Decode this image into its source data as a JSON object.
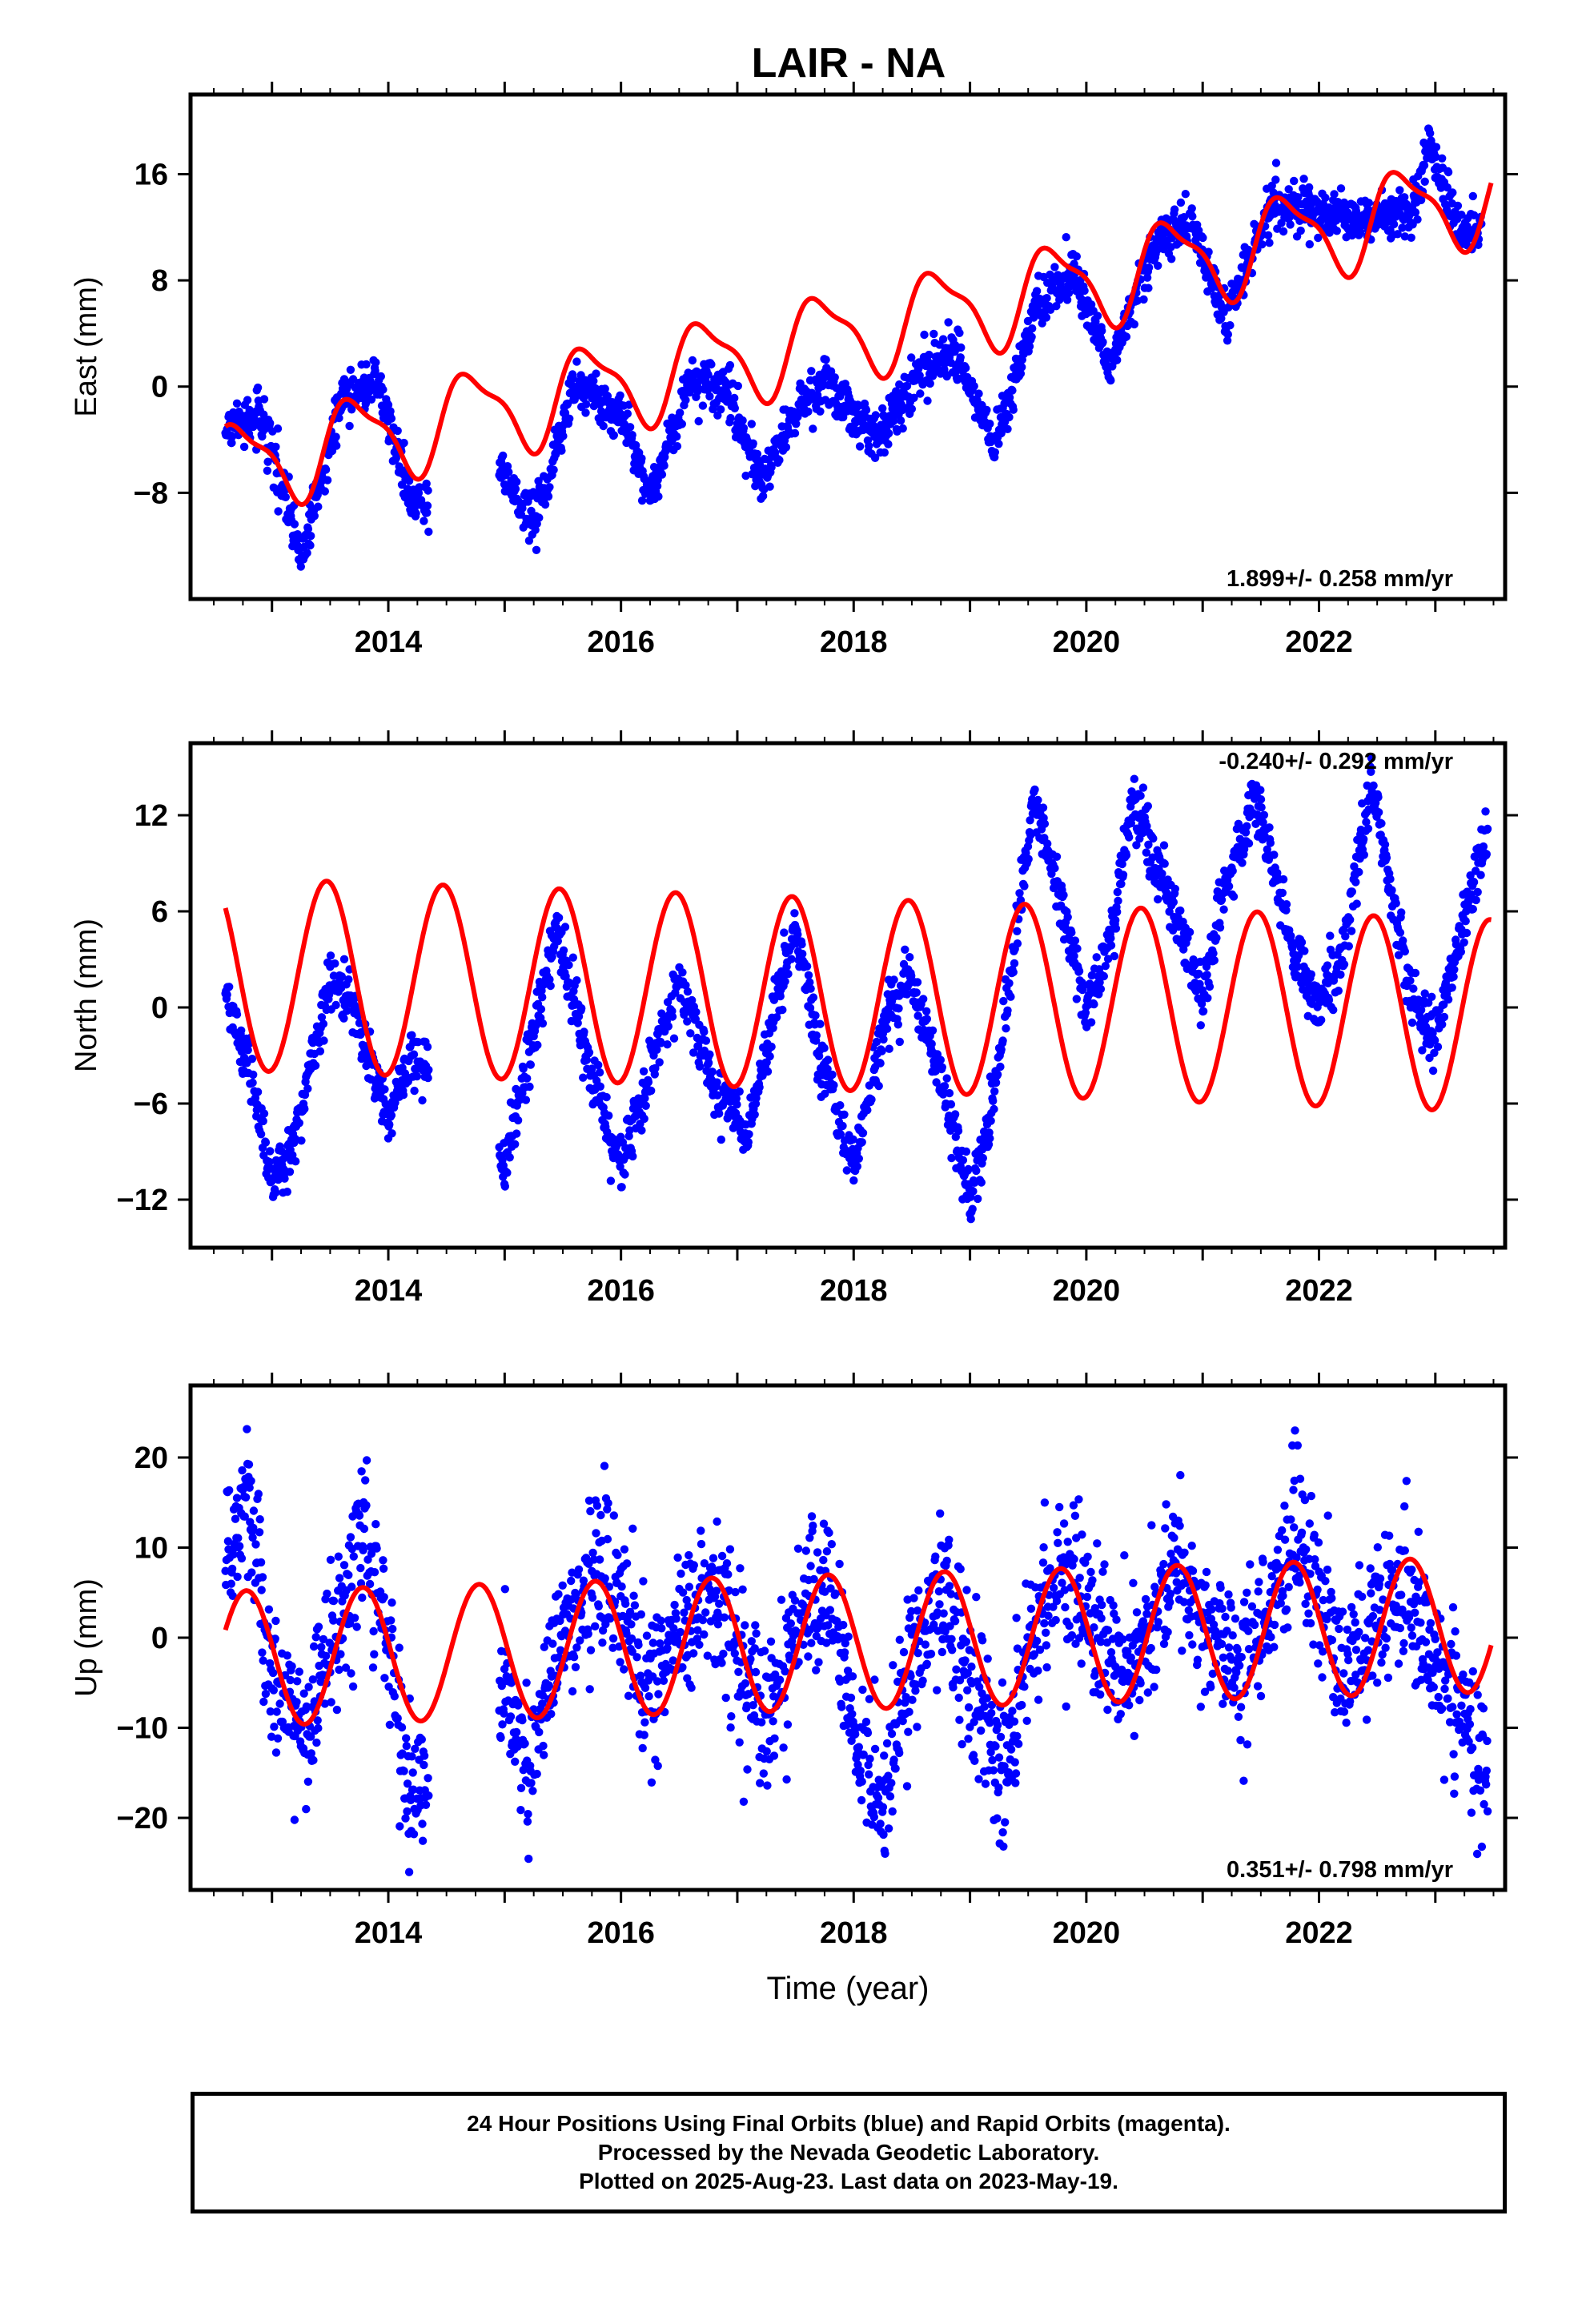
{
  "title": "LAIR - NA",
  "colors": {
    "data": "#0000ff",
    "model": "#ff0000",
    "axis": "#000000",
    "background": "#ffffff"
  },
  "chart_data": [
    {
      "type": "scatter",
      "component": "east",
      "ylabel": "East (mm)",
      "xlabel": "",
      "xlim": [
        2012.3,
        2023.6
      ],
      "ylim": [
        -16,
        22
      ],
      "xticks": [
        2014,
        2016,
        2018,
        2020,
        2022
      ],
      "yticks": [
        -8,
        0,
        8,
        16
      ],
      "rate_label": "1.899+/- 0.258 mm/yr",
      "rate_label_position": "bottom-right",
      "model": {
        "offset": -5.4,
        "rate": 1.899,
        "annual_amp": 3.2,
        "annual_peak": 0.72,
        "semiannual_amp": 1.0,
        "semiannual_peak": 0.55
      },
      "series": [
        {
          "x": 2012.6,
          "y": -3.5
        },
        {
          "x": 2012.9,
          "y": -2.0
        },
        {
          "x": 2013.1,
          "y": -7.5
        },
        {
          "x": 2013.25,
          "y": -13.0
        },
        {
          "x": 2013.6,
          "y": -1.0
        },
        {
          "x": 2013.9,
          "y": 0.5
        },
        {
          "x": 2014.2,
          "y": -9.0
        },
        {
          "x": 2015.0,
          "y": -6.0
        },
        {
          "x": 2015.25,
          "y": -10.5
        },
        {
          "x": 2015.6,
          "y": 0.0
        },
        {
          "x": 2016.0,
          "y": -2.0
        },
        {
          "x": 2016.25,
          "y": -8.5
        },
        {
          "x": 2016.6,
          "y": 0.5
        },
        {
          "x": 2016.9,
          "y": 0.0
        },
        {
          "x": 2017.2,
          "y": -7.0
        },
        {
          "x": 2017.6,
          "y": -0.5
        },
        {
          "x": 2017.8,
          "y": 0.0
        },
        {
          "x": 2018.2,
          "y": -4.0
        },
        {
          "x": 2018.6,
          "y": 1.5
        },
        {
          "x": 2018.9,
          "y": 2.5
        },
        {
          "x": 2019.2,
          "y": -4.5
        },
        {
          "x": 2019.6,
          "y": 6.5
        },
        {
          "x": 2019.9,
          "y": 8.5
        },
        {
          "x": 2020.2,
          "y": 1.5
        },
        {
          "x": 2020.6,
          "y": 11.0
        },
        {
          "x": 2020.9,
          "y": 12.5
        },
        {
          "x": 2021.2,
          "y": 5.0
        },
        {
          "x": 2021.6,
          "y": 14.0
        },
        {
          "x": 2021.9,
          "y": 13.0
        },
        {
          "x": 2022.4,
          "y": 12.5
        },
        {
          "x": 2022.8,
          "y": 13.0
        },
        {
          "x": 2022.95,
          "y": 18.5
        },
        {
          "x": 2023.2,
          "y": 12.0
        },
        {
          "x": 2023.4,
          "y": 12.0
        }
      ]
    },
    {
      "type": "scatter",
      "component": "north",
      "ylabel": "North (mm)",
      "xlabel": "",
      "xlim": [
        2012.3,
        2023.6
      ],
      "ylim": [
        -15,
        16.5
      ],
      "xticks": [
        2014,
        2016,
        2018,
        2020,
        2022
      ],
      "yticks": [
        -12,
        -6,
        0,
        6,
        12
      ],
      "rate_label": "-0.240+/- 0.292 mm/yr",
      "rate_label_position": "top-right",
      "model": {
        "offset": 2.0,
        "rate": -0.24,
        "annual_amp": 6.0,
        "annual_peak": 0.47,
        "semiannual_amp": 0.0,
        "semiannual_peak": 0.0
      },
      "series": [
        {
          "x": 2012.6,
          "y": 1.0
        },
        {
          "x": 2012.8,
          "y": -3.5
        },
        {
          "x": 2013.0,
          "y": -11.0
        },
        {
          "x": 2013.2,
          "y": -8.0
        },
        {
          "x": 2013.5,
          "y": 2.0
        },
        {
          "x": 2013.7,
          "y": 0.0
        },
        {
          "x": 2014.0,
          "y": -7.0
        },
        {
          "x": 2014.2,
          "y": -3.0
        },
        {
          "x": 2015.0,
          "y": -10.0
        },
        {
          "x": 2015.2,
          "y": -3.0
        },
        {
          "x": 2015.45,
          "y": 5.0
        },
        {
          "x": 2015.7,
          "y": -3.0
        },
        {
          "x": 2016.0,
          "y": -10.0
        },
        {
          "x": 2016.3,
          "y": -3.0
        },
        {
          "x": 2016.5,
          "y": 2.0
        },
        {
          "x": 2016.8,
          "y": -5.0
        },
        {
          "x": 2017.1,
          "y": -8.0
        },
        {
          "x": 2017.3,
          "y": -1.0
        },
        {
          "x": 2017.5,
          "y": 5.0
        },
        {
          "x": 2017.7,
          "y": -3.0
        },
        {
          "x": 2018.0,
          "y": -10.0
        },
        {
          "x": 2018.3,
          "y": 0.0
        },
        {
          "x": 2018.5,
          "y": 2.0
        },
        {
          "x": 2018.8,
          "y": -6.0
        },
        {
          "x": 2019.0,
          "y": -12.0
        },
        {
          "x": 2019.2,
          "y": -6.0
        },
        {
          "x": 2019.55,
          "y": 13.0
        },
        {
          "x": 2019.8,
          "y": 6.0
        },
        {
          "x": 2020.0,
          "y": 0.0
        },
        {
          "x": 2020.2,
          "y": 4.0
        },
        {
          "x": 2020.4,
          "y": 13.0
        },
        {
          "x": 2020.7,
          "y": 7.0
        },
        {
          "x": 2021.0,
          "y": 0.5
        },
        {
          "x": 2021.2,
          "y": 8.0
        },
        {
          "x": 2021.45,
          "y": 13.0
        },
        {
          "x": 2021.8,
          "y": 3.0
        },
        {
          "x": 2022.0,
          "y": 0.0
        },
        {
          "x": 2022.2,
          "y": 3.0
        },
        {
          "x": 2022.45,
          "y": 14.0
        },
        {
          "x": 2022.8,
          "y": 0.5
        },
        {
          "x": 2023.0,
          "y": -2.0
        },
        {
          "x": 2023.2,
          "y": 4.0
        },
        {
          "x": 2023.45,
          "y": 11.0
        }
      ]
    },
    {
      "type": "scatter",
      "component": "up",
      "ylabel": "Up (mm)",
      "xlabel": "Time (year)",
      "xlim": [
        2012.3,
        2023.6
      ],
      "ylim": [
        -28,
        28
      ],
      "xticks": [
        2014,
        2016,
        2018,
        2020,
        2022
      ],
      "yticks": [
        -20,
        -10,
        0,
        10,
        20
      ],
      "rate_label": "0.351+/- 0.798 mm/yr",
      "rate_label_position": "bottom-right",
      "model": {
        "offset": -2.2,
        "rate": 0.351,
        "annual_amp": 7.5,
        "annual_peak": 0.78,
        "semiannual_amp": 0.0,
        "semiannual_peak": 0.0
      },
      "series": [
        {
          "x": 2012.6,
          "y": 10.0
        },
        {
          "x": 2012.8,
          "y": 15.0
        },
        {
          "x": 2013.0,
          "y": -5.0
        },
        {
          "x": 2013.3,
          "y": -10.0
        },
        {
          "x": 2013.6,
          "y": 3.0
        },
        {
          "x": 2013.8,
          "y": 12.0
        },
        {
          "x": 2014.0,
          "y": -2.0
        },
        {
          "x": 2014.2,
          "y": -18.0
        },
        {
          "x": 2015.0,
          "y": -5.0
        },
        {
          "x": 2015.2,
          "y": -15.0
        },
        {
          "x": 2015.5,
          "y": 0.0
        },
        {
          "x": 2015.8,
          "y": 8.0
        },
        {
          "x": 2016.0,
          "y": 5.0
        },
        {
          "x": 2016.2,
          "y": -8.0
        },
        {
          "x": 2016.5,
          "y": 0.0
        },
        {
          "x": 2016.8,
          "y": 5.0
        },
        {
          "x": 2017.0,
          "y": -2.0
        },
        {
          "x": 2017.25,
          "y": -10.0
        },
        {
          "x": 2017.5,
          "y": 2.0
        },
        {
          "x": 2017.8,
          "y": 6.0
        },
        {
          "x": 2018.0,
          "y": -10.0
        },
        {
          "x": 2018.25,
          "y": -18.0
        },
        {
          "x": 2018.5,
          "y": -2.0
        },
        {
          "x": 2018.8,
          "y": 5.0
        },
        {
          "x": 2019.0,
          "y": -5.0
        },
        {
          "x": 2019.3,
          "y": -15.0
        },
        {
          "x": 2019.55,
          "y": 2.0
        },
        {
          "x": 2019.8,
          "y": 8.0
        },
        {
          "x": 2020.0,
          "y": 4.0
        },
        {
          "x": 2020.3,
          "y": -5.0
        },
        {
          "x": 2020.6,
          "y": 4.0
        },
        {
          "x": 2020.8,
          "y": 9.0
        },
        {
          "x": 2021.0,
          "y": 3.0
        },
        {
          "x": 2021.3,
          "y": -5.0
        },
        {
          "x": 2021.6,
          "y": 5.0
        },
        {
          "x": 2021.8,
          "y": 12.0
        },
        {
          "x": 2022.0,
          "y": 5.0
        },
        {
          "x": 2022.2,
          "y": -5.0
        },
        {
          "x": 2022.75,
          "y": 6.0
        },
        {
          "x": 2022.9,
          "y": 0.0
        },
        {
          "x": 2023.1,
          "y": -5.0
        },
        {
          "x": 2023.3,
          "y": -10.0
        },
        {
          "x": 2023.45,
          "y": -15.0
        }
      ]
    }
  ],
  "caption": {
    "line1": "24 Hour Positions Using Final Orbits (blue) and Rapid Orbits (magenta).",
    "line2": "Processed by the Nevada Geodetic Laboratory.",
    "line3": "Plotted on 2025-Aug-23. Last data on 2023-May-19."
  }
}
